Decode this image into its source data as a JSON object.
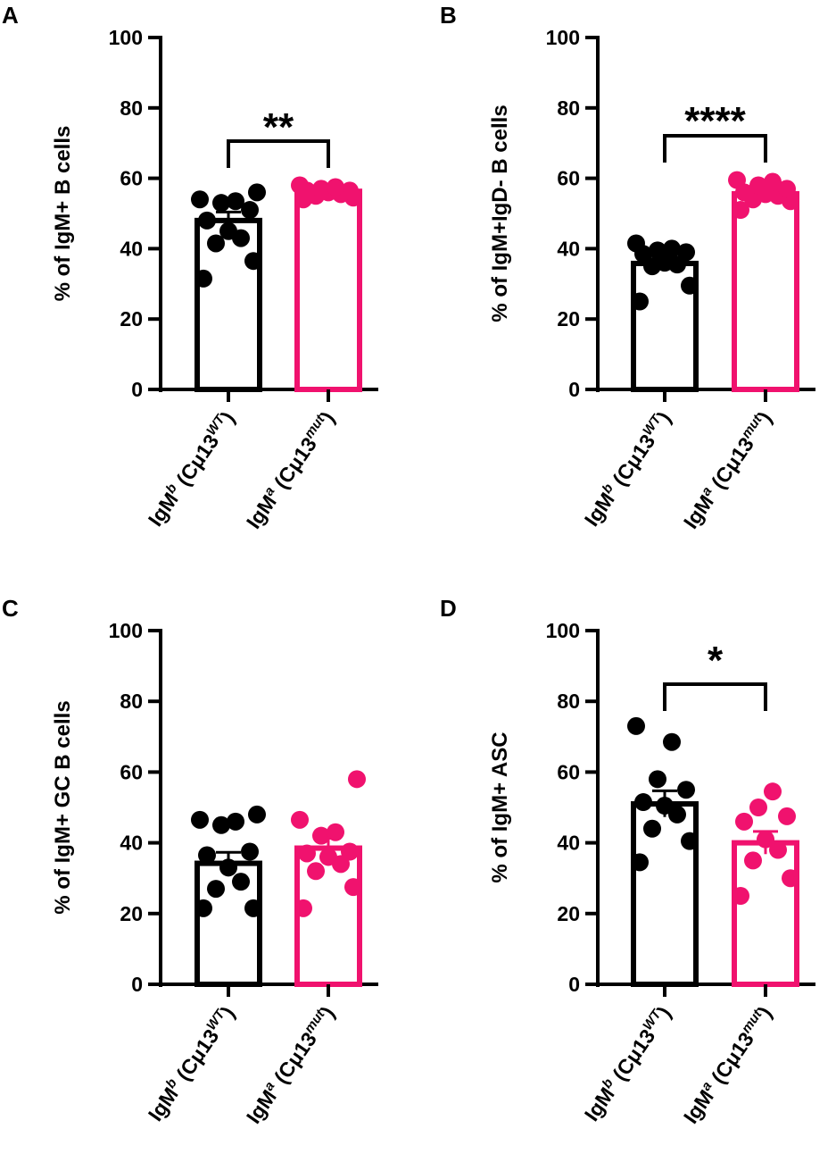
{
  "colors": {
    "wt": "#000000",
    "mut": "#f0126e",
    "axis": "#000000",
    "background": "#ffffff"
  },
  "categories": [
    {
      "prefix": "IgM",
      "superscript_a": "b",
      "middle": " (Cμ13",
      "superscript_b": "WT",
      "suffix": ")"
    },
    {
      "prefix": "IgM",
      "superscript_a": "a",
      "middle": " (Cμ13",
      "superscript_b": "mut",
      "suffix": ")"
    }
  ],
  "chart_data": [
    {
      "panel": "A",
      "type": "bar",
      "ylabel": "% of IgM+ B cells",
      "ylim": [
        0,
        100
      ],
      "yticks": [
        0,
        20,
        40,
        60,
        80,
        100
      ],
      "tick_labels": [
        "0",
        "20",
        "40",
        "60",
        "80",
        "100"
      ],
      "series": [
        {
          "name": "IgMb (Cμ13WT)",
          "color": "#000000",
          "mean": 48,
          "sem": 2.4,
          "points": [
            31.5,
            36.5,
            41.5,
            43,
            45,
            48,
            51,
            53,
            53.5,
            54,
            56
          ]
        },
        {
          "name": "IgMa (Cμ13mut)",
          "color": "#f0126e",
          "mean": 56.3,
          "sem": 0.5,
          "points": [
            54,
            54.5,
            55,
            55.5,
            56,
            56.5,
            56.5,
            57,
            57.5,
            58
          ]
        }
      ],
      "significance": "**"
    },
    {
      "panel": "B",
      "type": "bar",
      "ylabel": "% of IgM+IgD- B cells",
      "ylim": [
        0,
        100
      ],
      "yticks": [
        0,
        20,
        40,
        60,
        80,
        100
      ],
      "tick_labels": [
        "0",
        "20",
        "40",
        "60",
        "80",
        "100"
      ],
      "series": [
        {
          "name": "IgMb (Cμ13WT)",
          "color": "#000000",
          "mean": 35.8,
          "sem": 1.6,
          "points": [
            25,
            29.5,
            35,
            35.5,
            36,
            38.5,
            39,
            39.5,
            40,
            41.5
          ]
        },
        {
          "name": "IgMa (Cμ13mut)",
          "color": "#f0126e",
          "mean": 55.6,
          "sem": 0.8,
          "points": [
            51,
            53.5,
            54,
            55,
            55.5,
            56,
            57,
            58,
            59,
            59.5
          ]
        }
      ],
      "significance": "****"
    },
    {
      "panel": "C",
      "type": "bar",
      "ylabel": "% of IgM+ GC B cells",
      "ylim": [
        0,
        100
      ],
      "yticks": [
        0,
        20,
        40,
        60,
        80,
        100
      ],
      "tick_labels": [
        "0",
        "20",
        "40",
        "60",
        "80",
        "100"
      ],
      "series": [
        {
          "name": "IgMb (Cμ13WT)",
          "color": "#000000",
          "mean": 34.2,
          "sem": 3.1,
          "points": [
            21.5,
            21.5,
            27,
            29,
            33,
            36.5,
            37.5,
            45,
            46,
            46.5,
            48
          ]
        },
        {
          "name": "IgMa (Cμ13mut)",
          "color": "#f0126e",
          "mean": 38.5,
          "sem": 2.8,
          "points": [
            21.5,
            27.5,
            32,
            34,
            36,
            37,
            37.5,
            42,
            43,
            46.5,
            58
          ]
        }
      ],
      "significance": ""
    },
    {
      "panel": "D",
      "type": "bar",
      "ylabel": "% of IgM+ ASC",
      "ylim": [
        0,
        100
      ],
      "yticks": [
        0,
        20,
        40,
        60,
        80,
        100
      ],
      "tick_labels": [
        "0",
        "20",
        "40",
        "60",
        "80",
        "100"
      ],
      "series": [
        {
          "name": "IgMb (Cμ13WT)",
          "color": "#000000",
          "mean": 51,
          "sem": 3.7,
          "points": [
            34.5,
            40.5,
            44,
            48,
            50.5,
            51.5,
            55,
            58,
            68.5,
            73
          ]
        },
        {
          "name": "IgMa (Cμ13mut)",
          "color": "#f0126e",
          "mean": 40,
          "sem": 3.2,
          "points": [
            25,
            30,
            35,
            38,
            41,
            46,
            47.5,
            50,
            54.5
          ]
        }
      ],
      "significance": "*"
    }
  ]
}
